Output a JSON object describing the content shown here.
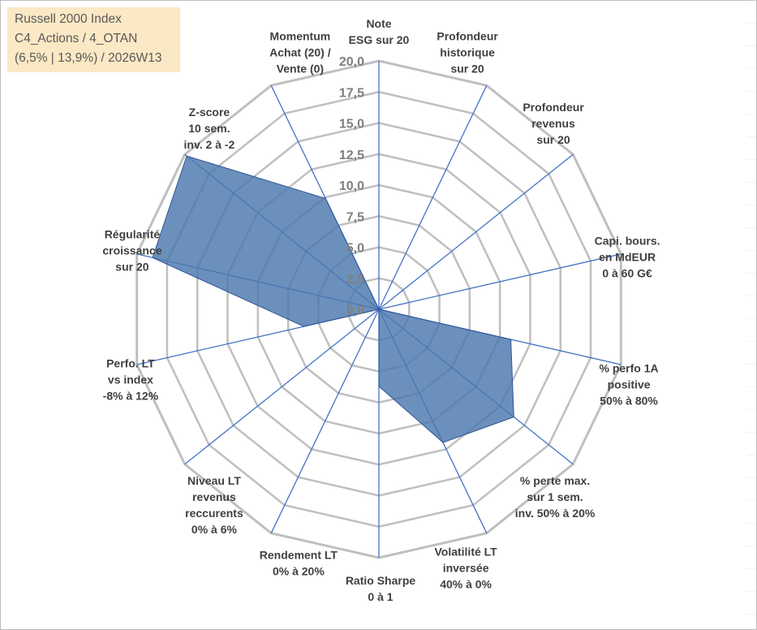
{
  "info_box": {
    "line1": "Russell 2000 Index",
    "line2": "C4_Actions / 4_OTAN",
    "line3": "(6,5% | 13,9%) / 2026W13"
  },
  "colors": {
    "fill": "#4a77ad",
    "stroke": "#2f5597",
    "axis": "#4472c4",
    "grid": "#bfbfbf",
    "info_bg": "#fbe8c4"
  },
  "chart_data": {
    "type": "radar",
    "title": "",
    "rmin": 0,
    "rmax": 20,
    "tick_step": 2.5,
    "tick_labels": [
      "0,0",
      "2,5",
      "5,0",
      "7,5",
      "10,0",
      "12,5",
      "15,0",
      "17,5",
      "20,0"
    ],
    "axes": [
      {
        "lines": [
          "Note",
          "ESG sur 20"
        ]
      },
      {
        "lines": [
          "Profondeur",
          "historique",
          "sur 20"
        ]
      },
      {
        "lines": [
          "Profondeur",
          "revenus",
          "sur 20"
        ]
      },
      {
        "lines": [
          "Capi. bours.",
          "en MdEUR",
          "0 à 60 G€"
        ]
      },
      {
        "lines": [
          "% perfo 1A",
          "positive",
          "50% à 80%"
        ]
      },
      {
        "lines": [
          "% perte max.",
          "sur 1 sem.",
          "inv. 50% à 20%"
        ]
      },
      {
        "lines": [
          "Volatilité LT",
          "inversée",
          "40% à 0%"
        ]
      },
      {
        "lines": [
          "Ratio Sharpe",
          "0 à 1"
        ]
      },
      {
        "lines": [
          "Rendement LT",
          "0% à 20%"
        ]
      },
      {
        "lines": [
          "Niveau LT",
          "revenus",
          "reccurents",
          "0% à 6%"
        ]
      },
      {
        "lines": [
          "Perfo. LT",
          "vs index",
          "-8% à 12%"
        ]
      },
      {
        "lines": [
          "Régularité",
          "croissance",
          "sur 20"
        ]
      },
      {
        "lines": [
          "Z-score",
          "10 sem.",
          "inv. 2 à -2"
        ]
      },
      {
        "lines": [
          "Momentum",
          "Achat (20) /",
          "Vente (0)"
        ]
      }
    ],
    "series": [
      {
        "name": "Russell 2000 Index",
        "values": [
          0,
          0,
          0,
          0,
          10.9,
          13.9,
          11.9,
          6.2,
          0,
          0,
          6.2,
          18.7,
          19.8,
          9.9
        ]
      }
    ]
  }
}
